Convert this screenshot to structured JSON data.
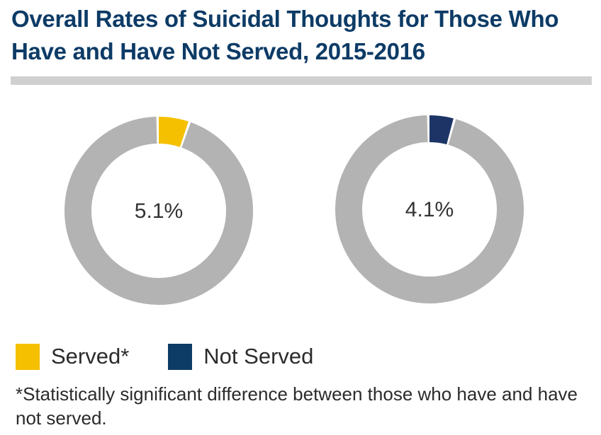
{
  "title": "Overall Rates of Suicidal Thoughts for Those Who Have and Have Not Served, 2015-2016",
  "chart_data": [
    {
      "type": "pie",
      "variant": "donut",
      "series_name": "Served*",
      "value": 5.1,
      "remainder": 94.9,
      "center_label": "5.1%",
      "color": "#f5c000",
      "remainder_color": "#b3b3b3"
    },
    {
      "type": "pie",
      "variant": "donut",
      "series_name": "Not Served",
      "value": 4.1,
      "remainder": 95.9,
      "center_label": "4.1%",
      "color": "#1c3566",
      "remainder_color": "#b3b3b3"
    }
  ],
  "legend": [
    {
      "label": "Served*",
      "color": "#f5c000"
    },
    {
      "label": "Not Served",
      "color": "#0d3d66"
    }
  ],
  "footnote": "*Statistically significant difference between those who have and have not served.",
  "colors": {
    "title": "#0d3b66",
    "rule": "#d0d0d0",
    "ring": "#b3b3b3"
  }
}
